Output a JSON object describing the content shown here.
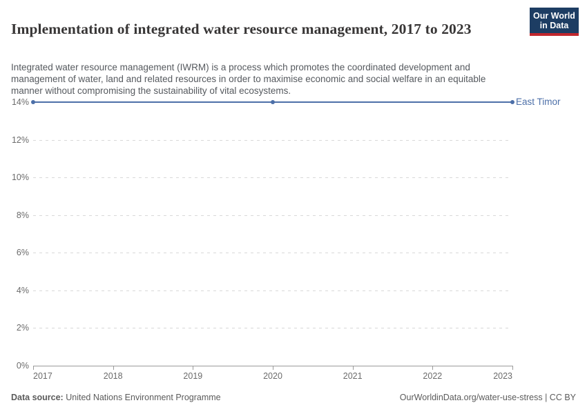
{
  "header": {
    "title": "Implementation of integrated water resource management, 2017 to 2023",
    "subtitle": "Integrated water resource management (IWRM) is a process which promotes the coordinated development and management of water, land and related resources in order to maximise economic and social welfare in an equitable manner without compromising the sustainability of vital ecosystems.",
    "logo": {
      "line1": "Our World",
      "line2": "in Data",
      "bg_color": "#1d3d63",
      "bar_color": "#c1272d"
    }
  },
  "chart_data": {
    "type": "line",
    "title": "Implementation of integrated water resource management, 2017 to 2023",
    "series": [
      {
        "name": "East Timor",
        "color": "#4c6fa8",
        "x": [
          2017,
          2020,
          2023
        ],
        "values": [
          14,
          14,
          14
        ]
      }
    ],
    "x_ticks": [
      2017,
      2018,
      2019,
      2020,
      2021,
      2022,
      2023
    ],
    "y_ticks": [
      0,
      2,
      4,
      6,
      8,
      10,
      12,
      14
    ],
    "y_suffix": "%",
    "xlim": [
      2017,
      2023
    ],
    "ylim": [
      0,
      14
    ],
    "grid": "horizontal-dashed",
    "legend_position": "right-of-line"
  },
  "footer": {
    "datasource_label": "Data source:",
    "datasource_value": "United Nations Environment Programme",
    "url": "OurWorldinData.org/water-use-stress",
    "separator": "|",
    "license": "CC BY"
  }
}
